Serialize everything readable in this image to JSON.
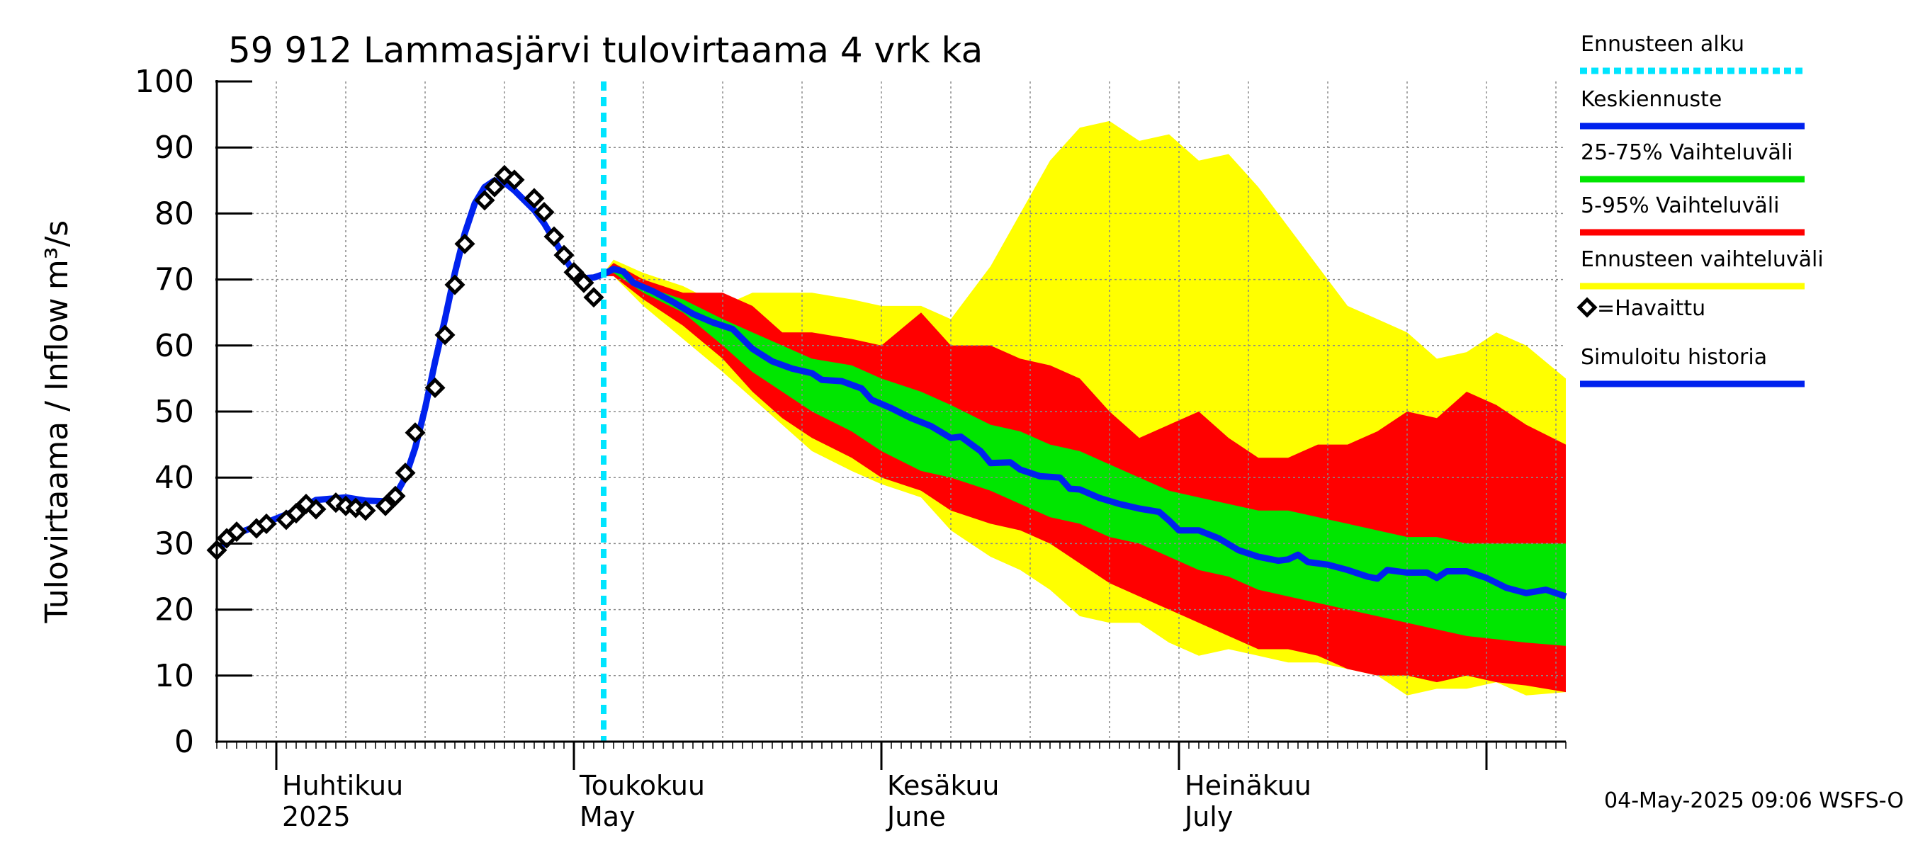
{
  "chart_data": {
    "type": "area",
    "title": "59 912 Lammasjärvi tulovirtaama 4 vrk ka",
    "ylabel": "Tulovirtaama / Inflow",
    "yunit": "m³/s",
    "ylim": [
      0,
      100
    ],
    "yticks": [
      0,
      10,
      20,
      30,
      40,
      50,
      60,
      70,
      80,
      90,
      100
    ],
    "xlim": [
      "2025-03-26",
      "2025-08-09"
    ],
    "x_ticks": [
      {
        "date": "2025-04-01",
        "line1": "Huhtikuu",
        "line2": "2025"
      },
      {
        "date": "2025-05-01",
        "line1": "Toukokuu",
        "line2": "May"
      },
      {
        "date": "2025-06-01",
        "line1": "Kesäkuu",
        "line2": "June"
      },
      {
        "date": "2025-07-01",
        "line1": "Heinäkuu",
        "line2": "July"
      }
    ],
    "grid": true,
    "forecast_start": "2025-05-04",
    "legend": [
      {
        "label": "Ennusteen alku",
        "color": "#00e5ff",
        "style": "dotted"
      },
      {
        "label": "Keskiennuste",
        "color": "#0022ee",
        "style": "line"
      },
      {
        "label": "25-75% Vaihteluväli",
        "color": "#00e600",
        "style": "line"
      },
      {
        "label": "5-95% Vaihteluväli",
        "color": "#ff0000",
        "style": "line"
      },
      {
        "label": "Ennusteen vaihteluväli",
        "color": "#ffff00",
        "style": "line"
      },
      {
        "label": "=Havaittu",
        "color": "#000000",
        "style": "diamond"
      },
      {
        "label": "Simuloitu historia",
        "color": "#0022ee",
        "style": "line"
      }
    ],
    "observed": [
      [
        "2025-03-26",
        29.0
      ],
      [
        "2025-03-27",
        30.8
      ],
      [
        "2025-03-28",
        31.8
      ],
      [
        "2025-03-30",
        32.3
      ],
      [
        "2025-03-31",
        33.0
      ],
      [
        "2025-04-02",
        33.6
      ],
      [
        "2025-04-03",
        34.6
      ],
      [
        "2025-04-04",
        36.0
      ],
      [
        "2025-04-05",
        35.2
      ],
      [
        "2025-04-07",
        36.2
      ],
      [
        "2025-04-08",
        35.7
      ],
      [
        "2025-04-09",
        35.4
      ],
      [
        "2025-04-10",
        35.0
      ],
      [
        "2025-04-12",
        35.7
      ],
      [
        "2025-04-13",
        37.2
      ],
      [
        "2025-04-14",
        40.7
      ],
      [
        "2025-04-15",
        46.8
      ],
      [
        "2025-04-17",
        53.6
      ],
      [
        "2025-04-18",
        61.6
      ],
      [
        "2025-04-19",
        69.2
      ],
      [
        "2025-04-20",
        75.4
      ],
      [
        "2025-04-22",
        82.0
      ],
      [
        "2025-04-23",
        84.0
      ],
      [
        "2025-04-24",
        85.8
      ],
      [
        "2025-04-25",
        85.1
      ],
      [
        "2025-04-27",
        82.3
      ],
      [
        "2025-04-28",
        80.2
      ],
      [
        "2025-04-29",
        76.5
      ],
      [
        "2025-04-30",
        73.7
      ],
      [
        "2025-05-01",
        71.1
      ],
      [
        "2025-05-02",
        69.5
      ],
      [
        "2025-05-03",
        67.3
      ]
    ],
    "simulated_history": [
      [
        "2025-03-26",
        29.0
      ],
      [
        "2025-03-28",
        31.5
      ],
      [
        "2025-03-31",
        33.2
      ],
      [
        "2025-04-03",
        35.0
      ],
      [
        "2025-04-05",
        36.6
      ],
      [
        "2025-04-08",
        37.0
      ],
      [
        "2025-04-10",
        36.5
      ],
      [
        "2025-04-12",
        36.4
      ],
      [
        "2025-04-13",
        37.3
      ],
      [
        "2025-04-14",
        40.0
      ],
      [
        "2025-04-15",
        44.5
      ],
      [
        "2025-04-16",
        50.5
      ],
      [
        "2025-04-17",
        57.5
      ],
      [
        "2025-04-18",
        64.0
      ],
      [
        "2025-04-19",
        71.0
      ],
      [
        "2025-04-20",
        77.0
      ],
      [
        "2025-04-21",
        81.5
      ],
      [
        "2025-04-22",
        84.0
      ],
      [
        "2025-04-23",
        85.0
      ],
      [
        "2025-04-24",
        84.7
      ],
      [
        "2025-04-25",
        83.5
      ],
      [
        "2025-04-26",
        82.0
      ],
      [
        "2025-04-27",
        80.5
      ],
      [
        "2025-04-28",
        78.5
      ],
      [
        "2025-04-29",
        76.0
      ],
      [
        "2025-04-30",
        73.5
      ],
      [
        "2025-05-01",
        71.0
      ],
      [
        "2025-05-02",
        70.2
      ],
      [
        "2025-05-03",
        70.3
      ],
      [
        "2025-05-04",
        70.8
      ]
    ],
    "median": [
      [
        "2025-05-04",
        70.8
      ],
      [
        "2025-05-05",
        71.6
      ],
      [
        "2025-05-06",
        71.2
      ],
      [
        "2025-05-07",
        69.5
      ],
      [
        "2025-05-09",
        68.2
      ],
      [
        "2025-05-11",
        66.6
      ],
      [
        "2025-05-13",
        64.8
      ],
      [
        "2025-05-15",
        63.5
      ],
      [
        "2025-05-17",
        62.5
      ],
      [
        "2025-05-18",
        61.0
      ],
      [
        "2025-05-19",
        59.5
      ],
      [
        "2025-05-21",
        57.6
      ],
      [
        "2025-05-23",
        56.5
      ],
      [
        "2025-05-25",
        55.8
      ],
      [
        "2025-05-26",
        54.8
      ],
      [
        "2025-05-28",
        54.6
      ],
      [
        "2025-05-30",
        53.5
      ],
      [
        "2025-05-31",
        51.8
      ],
      [
        "2025-06-02",
        50.5
      ],
      [
        "2025-06-04",
        49.0
      ],
      [
        "2025-06-06",
        47.8
      ],
      [
        "2025-06-07",
        46.9
      ],
      [
        "2025-06-08",
        46.0
      ],
      [
        "2025-06-09",
        46.2
      ],
      [
        "2025-06-11",
        44.0
      ],
      [
        "2025-06-12",
        42.2
      ],
      [
        "2025-06-14",
        42.3
      ],
      [
        "2025-06-15",
        41.2
      ],
      [
        "2025-06-17",
        40.2
      ],
      [
        "2025-06-19",
        40.0
      ],
      [
        "2025-06-20",
        38.3
      ],
      [
        "2025-06-21",
        38.2
      ],
      [
        "2025-06-23",
        36.9
      ],
      [
        "2025-06-25",
        36.0
      ],
      [
        "2025-06-27",
        35.3
      ],
      [
        "2025-06-29",
        34.8
      ],
      [
        "2025-06-30",
        33.5
      ],
      [
        "2025-07-01",
        32.0
      ],
      [
        "2025-07-03",
        32.0
      ],
      [
        "2025-07-05",
        30.8
      ],
      [
        "2025-07-07",
        29.0
      ],
      [
        "2025-07-09",
        28.0
      ],
      [
        "2025-07-11",
        27.4
      ],
      [
        "2025-07-12",
        27.6
      ],
      [
        "2025-07-13",
        28.3
      ],
      [
        "2025-07-14",
        27.2
      ],
      [
        "2025-07-16",
        26.8
      ],
      [
        "2025-07-18",
        26.0
      ],
      [
        "2025-07-20",
        25.0
      ],
      [
        "2025-07-21",
        24.7
      ],
      [
        "2025-07-22",
        26.0
      ],
      [
        "2025-07-24",
        25.6
      ],
      [
        "2025-07-26",
        25.6
      ],
      [
        "2025-07-27",
        24.8
      ],
      [
        "2025-07-28",
        25.8
      ],
      [
        "2025-07-30",
        25.8
      ],
      [
        "2025-08-01",
        24.8
      ],
      [
        "2025-08-03",
        23.3
      ],
      [
        "2025-08-05",
        22.5
      ],
      [
        "2025-08-07",
        23.0
      ],
      [
        "2025-08-09",
        22.0
      ]
    ],
    "bands": {
      "dates": [
        "2025-05-04",
        "2025-05-05",
        "2025-05-08",
        "2025-05-12",
        "2025-05-16",
        "2025-05-19",
        "2025-05-22",
        "2025-05-25",
        "2025-05-29",
        "2025-06-01",
        "2025-06-05",
        "2025-06-08",
        "2025-06-12",
        "2025-06-15",
        "2025-06-18",
        "2025-06-21",
        "2025-06-24",
        "2025-06-27",
        "2025-06-30",
        "2025-07-03",
        "2025-07-06",
        "2025-07-09",
        "2025-07-12",
        "2025-07-15",
        "2025-07-18",
        "2025-07-21",
        "2025-07-24",
        "2025-07-27",
        "2025-07-30",
        "2025-08-02",
        "2025-08-05",
        "2025-08-09"
      ],
      "max": [
        71.0,
        73.0,
        71.0,
        69.0,
        66.0,
        68.0,
        68.0,
        68.0,
        67.0,
        66.0,
        66.0,
        64.0,
        72.0,
        80.0,
        88.0,
        93.0,
        94.0,
        91.0,
        92.0,
        88.0,
        89.0,
        84.0,
        78.0,
        72.0,
        66.0,
        64.0,
        62.0,
        58.0,
        59.0,
        62.0,
        60.0,
        55.0
      ],
      "p95": [
        71.0,
        72.5,
        70.0,
        68.0,
        68.0,
        66.0,
        62.0,
        62.0,
        61.0,
        60.0,
        65.0,
        60.0,
        60.0,
        58.0,
        57.0,
        55.0,
        50.0,
        46.0,
        48.0,
        50.0,
        46.0,
        43.0,
        43.0,
        45.0,
        45.0,
        47.0,
        50.0,
        49.0,
        53.0,
        51.0,
        48.0,
        45.0
      ],
      "p75": [
        71.0,
        72.0,
        69.0,
        67.0,
        64.0,
        62.0,
        60.0,
        58.0,
        57.0,
        55.0,
        53.0,
        51.0,
        48.0,
        47.0,
        45.0,
        44.0,
        42.0,
        40.0,
        38.0,
        37.0,
        36.0,
        35.0,
        35.0,
        34.0,
        33.0,
        32.0,
        31.0,
        31.0,
        30.0,
        30.0,
        30.0,
        30.0
      ],
      "p25": [
        70.5,
        71.0,
        68.0,
        65.0,
        60.0,
        56.0,
        53.0,
        50.0,
        47.0,
        44.0,
        41.0,
        40.0,
        38.0,
        36.0,
        34.0,
        33.0,
        31.0,
        30.0,
        28.0,
        26.0,
        25.0,
        23.0,
        22.0,
        21.0,
        20.0,
        19.0,
        18.0,
        17.0,
        16.0,
        15.5,
        15.0,
        14.5
      ],
      "p5": [
        70.5,
        70.5,
        67.0,
        63.0,
        58.0,
        53.0,
        49.0,
        46.0,
        43.0,
        40.0,
        38.0,
        35.0,
        33.0,
        32.0,
        30.0,
        27.0,
        24.0,
        22.0,
        20.0,
        18.0,
        16.0,
        14.0,
        14.0,
        13.0,
        11.0,
        10.0,
        10.0,
        9.0,
        10.0,
        9.0,
        8.5,
        7.5
      ],
      "min": [
        70.5,
        70.5,
        66.0,
        61.0,
        56.0,
        52.0,
        48.0,
        44.0,
        41.0,
        39.0,
        37.0,
        32.0,
        28.0,
        26.0,
        23.0,
        19.0,
        18.0,
        18.0,
        15.0,
        13.0,
        14.0,
        13.0,
        12.0,
        12.0,
        11.0,
        10.0,
        7.0,
        8.0,
        8.0,
        9.0,
        7.0,
        7.5
      ]
    }
  },
  "timestamp": "04-May-2025 09:06 WSFS-O"
}
